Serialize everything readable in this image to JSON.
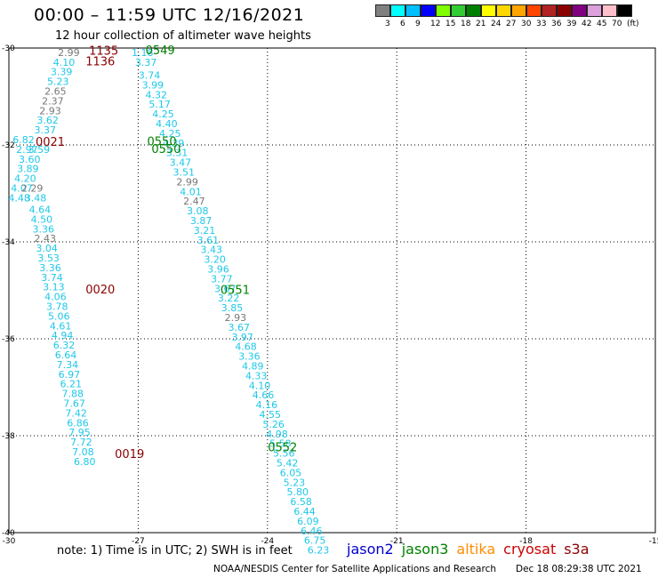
{
  "title": "00:00 – 11:59 UTC 12/16/2021",
  "subtitle": "12 hour collection of altimeter wave heights",
  "colors": {
    "gray": "#777777",
    "cyan": "#1ec8e8",
    "green": "#008000",
    "maroon": "#8b0000"
  },
  "legend": {
    "swatches": [
      "#808080",
      "#00ffff",
      "#00bfff",
      "#0000ff",
      "#7fff00",
      "#32cd32",
      "#008000",
      "#ffff00",
      "#ffd700",
      "#ffa500",
      "#ff4500",
      "#b22222",
      "#8b0000",
      "#800080",
      "#dda0dd",
      "#ffc0cb",
      "#000000"
    ],
    "labels": [
      "3",
      "6",
      "9",
      "12",
      "15",
      "18",
      "21",
      "24",
      "27",
      "30",
      "33",
      "36",
      "39",
      "42",
      "45",
      "70",
      "(ft)"
    ]
  },
  "chart_data": {
    "type": "scatter",
    "xlim": [
      -30,
      -15
    ],
    "ylim": [
      -40,
      -30
    ],
    "x_ticks": [
      "-30",
      "-27",
      "-24",
      "-21",
      "-18",
      "-15"
    ],
    "y_ticks": [
      "-30",
      "-32",
      "-34",
      "-36",
      "-38",
      "-40"
    ],
    "grid": true,
    "tracks": [
      {
        "name": "jason3 descending (0549-0552)",
        "points": [
          [
            -26.9,
            -30.09,
            "1.18"
          ],
          [
            -26.82,
            -30.29,
            "3.37"
          ],
          [
            -26.74,
            -30.56,
            "3.74"
          ],
          [
            -26.66,
            -30.76,
            "3.99"
          ],
          [
            -26.58,
            -30.96,
            "4.32"
          ],
          [
            -26.5,
            -31.16,
            "5.17"
          ],
          [
            -26.42,
            -31.36,
            "4.25"
          ],
          [
            -26.34,
            -31.56,
            "4.40"
          ],
          [
            -26.26,
            -31.76,
            "4.25"
          ],
          [
            -26.18,
            -31.96,
            "4.39"
          ],
          [
            -26.1,
            -32.16,
            "3.31"
          ],
          [
            -26.02,
            -32.36,
            "3.47"
          ],
          [
            -25.94,
            -32.56,
            "3.51"
          ],
          [
            -25.86,
            -32.76,
            "2.99"
          ],
          [
            -25.78,
            -32.96,
            "4.01"
          ],
          [
            -25.7,
            -33.16,
            "2.47"
          ],
          [
            -25.62,
            -33.36,
            "3.08"
          ],
          [
            -25.54,
            -33.56,
            "3.87"
          ],
          [
            -25.46,
            -33.76,
            "3.21"
          ],
          [
            -25.38,
            -33.96,
            "3.61"
          ],
          [
            -25.3,
            -34.16,
            "3.43"
          ],
          [
            -25.22,
            -34.36,
            "3.20"
          ],
          [
            -25.14,
            -34.56,
            "3.96"
          ],
          [
            -25.06,
            -34.76,
            "3.77"
          ],
          [
            -24.98,
            -34.96,
            "3.67"
          ],
          [
            -24.9,
            -35.16,
            "3.22"
          ],
          [
            -24.82,
            -35.36,
            "3.85"
          ],
          [
            -24.74,
            -35.56,
            "2.93"
          ],
          [
            -24.66,
            -35.76,
            "3.67"
          ],
          [
            -24.58,
            -35.96,
            "3.97"
          ],
          [
            -24.5,
            -36.16,
            "4.68"
          ],
          [
            -24.42,
            -36.36,
            "3.36"
          ],
          [
            -24.34,
            -36.56,
            "4.89"
          ],
          [
            -24.26,
            -36.76,
            "4.33"
          ],
          [
            -24.18,
            -36.96,
            "4.10"
          ],
          [
            -24.1,
            -37.16,
            "4.66"
          ],
          [
            -24.02,
            -37.36,
            "4.16"
          ],
          [
            -23.94,
            -37.56,
            "4.55"
          ],
          [
            -23.86,
            -37.76,
            "5.26"
          ],
          [
            -23.78,
            -37.96,
            "4.98"
          ],
          [
            -23.7,
            -38.16,
            "5.58"
          ],
          [
            -23.62,
            -38.36,
            "5.56"
          ],
          [
            -23.54,
            -38.56,
            "5.42"
          ],
          [
            -23.46,
            -38.76,
            "6.05"
          ],
          [
            -23.38,
            -38.96,
            "5.23"
          ],
          [
            -23.3,
            -39.16,
            "5.80"
          ],
          [
            -23.22,
            -39.36,
            "6.58"
          ],
          [
            -23.14,
            -39.56,
            "6.44"
          ],
          [
            -23.06,
            -39.76,
            "6.09"
          ],
          [
            -22.98,
            -39.96,
            "6.46"
          ],
          [
            -22.9,
            -40.16,
            "6.75"
          ],
          [
            -22.82,
            -40.36,
            "6.23"
          ]
        ],
        "point_colors": {
          "13": "gray",
          "15": "gray",
          "27": "gray"
        },
        "time_labels": [
          {
            "text": "0549",
            "x": -26.49,
            "y": -30.04
          },
          {
            "text": "0550",
            "x": -26.45,
            "y": -31.92
          },
          {
            "text": "0550",
            "x": -26.35,
            "y": -32.07
          },
          {
            "text": "0551",
            "x": -24.75,
            "y": -34.98
          },
          {
            "text": "0552",
            "x": -23.65,
            "y": -38.23
          }
        ]
      },
      {
        "name": "cryosat track (0019-0021, 1135-1136)",
        "points": [
          [
            -28.61,
            -30.09,
            "2.99"
          ],
          [
            -28.72,
            -30.29,
            "4.10"
          ],
          [
            -28.78,
            -30.49,
            "3.39"
          ],
          [
            -28.86,
            -30.69,
            "5.23"
          ],
          [
            -28.92,
            -30.89,
            "2.65"
          ],
          [
            -28.98,
            -31.09,
            "2.37"
          ],
          [
            -29.04,
            -31.29,
            "2.93"
          ],
          [
            -29.1,
            -31.49,
            "3.62"
          ],
          [
            -29.16,
            -31.69,
            "3.37"
          ],
          [
            -29.66,
            -31.89,
            "6.82"
          ],
          [
            -29.3,
            -32.09,
            "3.59"
          ],
          [
            -29.58,
            -32.09,
            "2.97"
          ],
          [
            -29.52,
            -32.29,
            "3.60"
          ],
          [
            -29.56,
            -32.49,
            "3.89"
          ],
          [
            -29.62,
            -32.69,
            "4.20"
          ],
          [
            -29.7,
            -32.89,
            "4.07"
          ],
          [
            -29.46,
            -32.89,
            "2.29"
          ],
          [
            -29.76,
            -33.09,
            "4.48"
          ],
          [
            -29.38,
            -33.09,
            "3.48"
          ],
          [
            -29.28,
            -33.33,
            "4.64"
          ],
          [
            -29.24,
            -33.53,
            "4.50"
          ],
          [
            -29.2,
            -33.73,
            "3.36"
          ],
          [
            -29.16,
            -33.93,
            "2.43"
          ],
          [
            -29.12,
            -34.13,
            "3.04"
          ],
          [
            -29.08,
            -34.33,
            "3.53"
          ],
          [
            -29.04,
            -34.53,
            "3.36"
          ],
          [
            -29.0,
            -34.73,
            "3.74"
          ],
          [
            -28.96,
            -34.93,
            "3.13"
          ],
          [
            -28.92,
            -35.13,
            "4.06"
          ],
          [
            -28.88,
            -35.33,
            "3.78"
          ],
          [
            -28.84,
            -35.53,
            "5.06"
          ],
          [
            -28.8,
            -35.73,
            "4.61"
          ],
          [
            -28.76,
            -35.93,
            "4.94"
          ],
          [
            -28.72,
            -36.13,
            "6.32"
          ],
          [
            -28.68,
            -36.33,
            "6.64"
          ],
          [
            -28.64,
            -36.53,
            "7.34"
          ],
          [
            -28.6,
            -36.73,
            "6.97"
          ],
          [
            -28.56,
            -36.93,
            "6.21"
          ],
          [
            -28.52,
            -37.13,
            "7.88"
          ],
          [
            -28.48,
            -37.33,
            "7.67"
          ],
          [
            -28.44,
            -37.53,
            "7.42"
          ],
          [
            -28.4,
            -37.73,
            "6.86"
          ],
          [
            -28.36,
            -37.93,
            "7.95"
          ],
          [
            -28.32,
            -38.13,
            "7.72"
          ],
          [
            -28.28,
            -38.33,
            "7.08"
          ],
          [
            -28.24,
            -38.53,
            "6.80"
          ]
        ],
        "point_colors": {
          "0": "gray",
          "4": "gray",
          "5": "gray",
          "6": "gray",
          "16": "gray",
          "22": "gray"
        },
        "time_labels": [
          {
            "text": "1135",
            "x": -27.8,
            "y": -30.05
          },
          {
            "text": "1136",
            "x": -27.88,
            "y": -30.27
          },
          {
            "text": "0021",
            "x": -29.04,
            "y": -31.93
          },
          {
            "text": "0020",
            "x": -27.88,
            "y": -34.97
          },
          {
            "text": "0019",
            "x": -27.2,
            "y": -38.37
          }
        ]
      }
    ]
  },
  "footer": {
    "note": "note:  1) Time is in UTC; 2) SWH is in feet",
    "satellites": [
      {
        "name": "jason2",
        "color": "#0000cc"
      },
      {
        "name": "jason3",
        "color": "#008000"
      },
      {
        "name": "altika",
        "color": "#ff8c00"
      },
      {
        "name": "cryosat",
        "color": "#cc0000"
      },
      {
        "name": "s3a",
        "color": "#8b0000"
      }
    ],
    "credit": "NOAA/NESDIS Center for Satellite Applications and Research",
    "timestamp": "Dec 18 08:29:38 UTC 2021"
  }
}
